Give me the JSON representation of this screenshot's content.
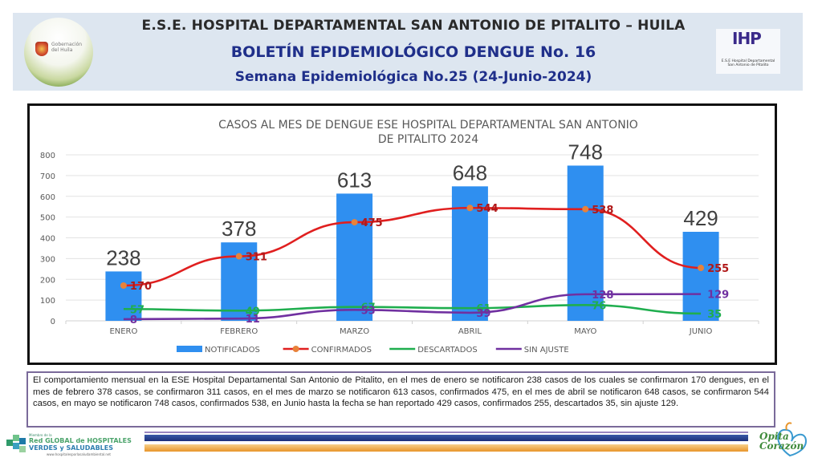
{
  "header": {
    "line1": "E.S.E. HOSPITAL DEPARTAMENTAL SAN ANTONIO DE PITALITO  –  HUILA",
    "line2": "BOLETÍN EPIDEMIOLÓGICO DENGUE No. 16",
    "line3": "Semana Epidemiológica No.25 (24-Junio-2024)",
    "left_logo_text": "Gobernación del Huila",
    "right_logo_mark": "IHP",
    "right_logo_caption": "E.S.E Hospital Departamental San Antonio de Pitalito"
  },
  "chart_data": {
    "type": "bar",
    "title": "CASOS AL MES DE DENGUE ESE HOSPITAL DEPARTAMENTAL SAN ANTONIO DE PITALITO 2024",
    "title_lines": [
      "CASOS AL MES DE DENGUE ESE HOSPITAL DEPARTAMENTAL SAN ANTONIO",
      "DE PITALITO 2024"
    ],
    "xlabel": "",
    "ylabel": "",
    "categories": [
      "ENERO",
      "FEBRERO",
      "MARZO",
      "ABRIL",
      "MAYO",
      "JUNIO"
    ],
    "ylim": [
      0,
      800
    ],
    "yticks": [
      0,
      100,
      200,
      300,
      400,
      500,
      600,
      700,
      800
    ],
    "grid": true,
    "legend_position": "bottom",
    "series": [
      {
        "name": "NOTIFICADOS",
        "kind": "bar",
        "color": "#2f8ff0",
        "label_color": "#404040",
        "values": [
          238,
          378,
          613,
          648,
          748,
          429
        ]
      },
      {
        "name": "CONFIRMADOS",
        "kind": "line",
        "color": "#e01f1f",
        "marker_color": "#e8823a",
        "label_color": "#b01818",
        "values": [
          170,
          311,
          475,
          544,
          538,
          255
        ]
      },
      {
        "name": "DESCARTADOS",
        "kind": "line",
        "color": "#1fae4e",
        "label_color": "#1fae4e",
        "values": [
          57,
          49,
          67,
          61,
          76,
          35
        ]
      },
      {
        "name": "SIN AJUSTE",
        "kind": "line",
        "color": "#7030a0",
        "label_color": "#7030a0",
        "values": [
          8,
          11,
          53,
          39,
          128,
          129
        ]
      }
    ]
  },
  "paragraph": "El comportamiento mensual en la ESE Hospital Departamental San Antonio de Pitalito, en el mes de enero se notificaron  238 casos de los cuales se confirmaron  170 dengues, en el mes de febrero  378 casos, se confirmaron 311 casos, en el mes de marzo se notificaron  613 casos, confirmados  475, en el mes de abril se notificaron  648 casos, se confirmaron 544 casos, en mayo se notificaron  748 casos, confirmados  538, en Junio hasta la fecha se han reportado 429 casos, confirmados 255, descartados 35, sin ajuste 129.",
  "footer": {
    "left_logo": {
      "line1": "Miembro de la",
      "line2": "Red GLOBAL de HOSPITALES",
      "line3": "VERDES y SALUDABLES",
      "line4": "www.hospitalesporlasaludambiental.net"
    },
    "right_logo_text": [
      "Opita",
      "de",
      "Corazón"
    ]
  }
}
